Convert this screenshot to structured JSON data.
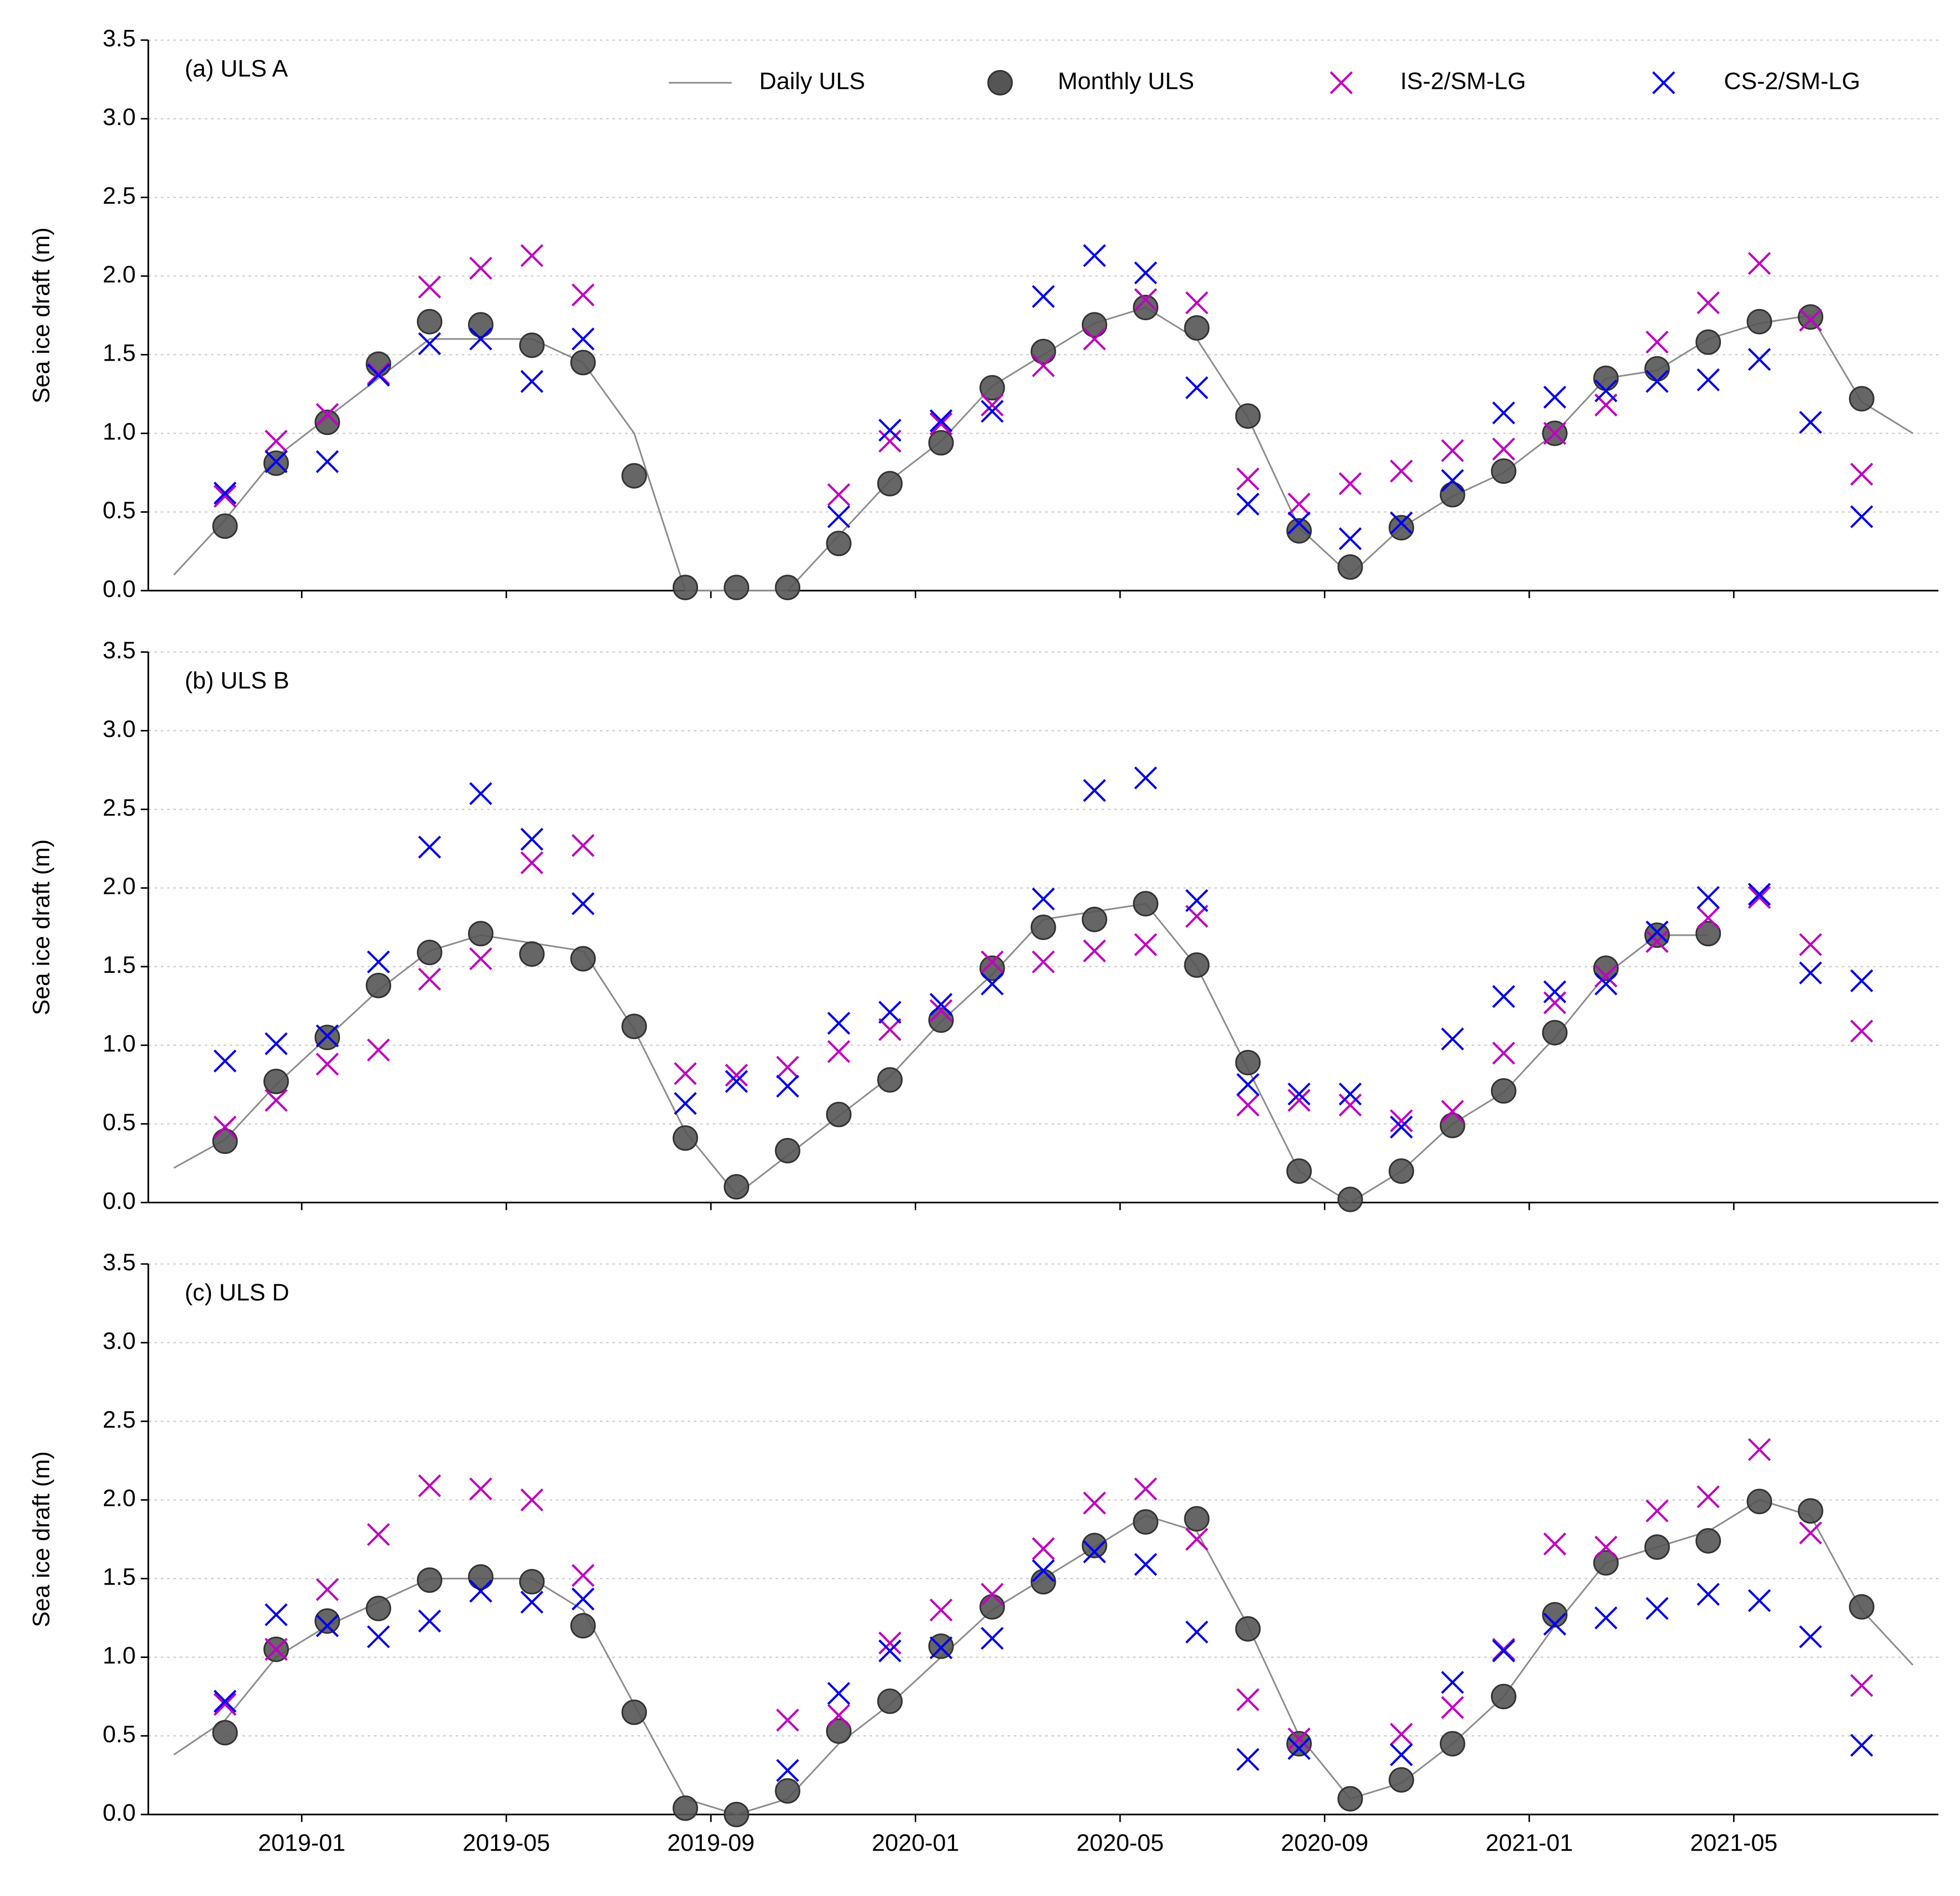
{
  "chart_data": [
    {
      "type": "line",
      "title": "(a) ULS A",
      "ylabel": "Sea ice draft (m)",
      "x": [
        "2018-10",
        "2018-11",
        "2018-12",
        "2019-01",
        "2019-02",
        "2019-03",
        "2019-04",
        "2019-05",
        "2019-06",
        "2019-07",
        "2019-08",
        "2019-09",
        "2019-10",
        "2019-11",
        "2019-12",
        "2020-01",
        "2020-02",
        "2020-03",
        "2020-04",
        "2020-05",
        "2020-06",
        "2020-07",
        "2020-08",
        "2020-09",
        "2020-10",
        "2020-11",
        "2020-12",
        "2021-01",
        "2021-02",
        "2021-03",
        "2021-04",
        "2021-05",
        "2021-06",
        "2021-07",
        "2021-08"
      ],
      "xlim": [
        "2018-10",
        "2021-08"
      ],
      "xticks": [
        "2019-01",
        "2019-05",
        "2019-09",
        "2020-01",
        "2020-05",
        "2020-09",
        "2021-01",
        "2021-05"
      ],
      "ylim": [
        0,
        3.5
      ],
      "yticks": [
        {
          "value": 0,
          "label": "0.0"
        },
        {
          "value": 0.5,
          "label": "0.5"
        },
        {
          "value": 1,
          "label": "1.0"
        },
        {
          "value": 1.5,
          "label": "1.5"
        },
        {
          "value": 2,
          "label": "2.0"
        },
        {
          "value": 2.5,
          "label": "2.5"
        },
        {
          "value": 3,
          "label": "3.0"
        },
        {
          "value": 3.5,
          "label": "3.5"
        }
      ],
      "grid": true,
      "legend": "upper right",
      "series": [
        {
          "name": "Daily ULS",
          "marker": "line",
          "color": "#8c8c8c",
          "values": [
            0.1,
            0.45,
            0.85,
            1.1,
            1.35,
            1.6,
            1.6,
            1.6,
            1.45,
            1.0,
            0.0,
            0.0,
            0.0,
            0.35,
            0.7,
            0.95,
            1.3,
            1.5,
            1.7,
            1.8,
            1.6,
            1.1,
            0.4,
            0.1,
            0.4,
            0.6,
            0.75,
            1.0,
            1.35,
            1.4,
            1.6,
            1.7,
            1.75,
            1.2,
            1.0
          ]
        },
        {
          "name": "Monthly ULS",
          "marker": "circle",
          "color": "#555555",
          "values": [
            null,
            0.41,
            0.81,
            1.07,
            1.44,
            1.71,
            1.69,
            1.56,
            1.45,
            0.73,
            0.02,
            0.02,
            0.02,
            0.3,
            0.68,
            0.94,
            1.29,
            1.52,
            1.69,
            1.8,
            1.67,
            1.11,
            0.38,
            0.15,
            0.4,
            0.61,
            0.76,
            1.0,
            1.35,
            1.41,
            1.58,
            1.71,
            1.74,
            1.22,
            null
          ]
        },
        {
          "name": "IS-2/SM-LG",
          "marker": "x",
          "color": "#c000c0",
          "values": [
            null,
            0.6,
            0.95,
            1.12,
            1.38,
            1.93,
            2.05,
            2.13,
            1.88,
            null,
            null,
            null,
            null,
            0.61,
            0.95,
            1.06,
            1.18,
            1.43,
            1.6,
            1.85,
            1.83,
            0.71,
            0.55,
            0.68,
            0.76,
            0.89,
            0.9,
            1.0,
            1.18,
            1.58,
            1.83,
            2.08,
            1.72,
            0.74,
            null
          ]
        },
        {
          "name": "CS-2/SM-LG",
          "marker": "x",
          "color": "#0000ee",
          "values": [
            null,
            0.62,
            0.82,
            0.82,
            1.37,
            1.57,
            1.6,
            1.33,
            1.6,
            null,
            null,
            null,
            null,
            0.47,
            1.02,
            1.08,
            1.14,
            1.87,
            2.13,
            2.02,
            1.29,
            0.55,
            0.43,
            0.33,
            0.43,
            0.7,
            1.13,
            1.23,
            1.27,
            1.33,
            1.34,
            1.47,
            1.07,
            0.47,
            null
          ]
        }
      ]
    },
    {
      "type": "line",
      "title": "(b) ULS B",
      "ylabel": "Sea ice draft (m)",
      "x": [
        "2018-10",
        "2018-11",
        "2018-12",
        "2019-01",
        "2019-02",
        "2019-03",
        "2019-04",
        "2019-05",
        "2019-06",
        "2019-07",
        "2019-08",
        "2019-09",
        "2019-10",
        "2019-11",
        "2019-12",
        "2020-01",
        "2020-02",
        "2020-03",
        "2020-04",
        "2020-05",
        "2020-06",
        "2020-07",
        "2020-08",
        "2020-09",
        "2020-10",
        "2020-11",
        "2020-12",
        "2021-01",
        "2021-02",
        "2021-03",
        "2021-04",
        "2021-05",
        "2021-06",
        "2021-07",
        "2021-08"
      ],
      "xlim": [
        "2018-10",
        "2021-08"
      ],
      "xticks": [
        "2019-01",
        "2019-05",
        "2019-09",
        "2020-01",
        "2020-05",
        "2020-09",
        "2021-01",
        "2021-05"
      ],
      "ylim": [
        0,
        3.5
      ],
      "yticks": [
        {
          "value": 0,
          "label": "0.0"
        },
        {
          "value": 0.5,
          "label": "0.5"
        },
        {
          "value": 1,
          "label": "1.0"
        },
        {
          "value": 1.5,
          "label": "1.5"
        },
        {
          "value": 2,
          "label": "2.0"
        },
        {
          "value": 2.5,
          "label": "2.5"
        },
        {
          "value": 3,
          "label": "3.0"
        },
        {
          "value": 3.5,
          "label": "3.5"
        }
      ],
      "grid": true,
      "series": [
        {
          "marker": "line",
          "color": "#8c8c8c",
          "values": [
            0.22,
            0.4,
            0.75,
            1.05,
            1.35,
            1.6,
            1.7,
            1.65,
            1.6,
            1.1,
            0.45,
            0.05,
            0.3,
            0.55,
            0.8,
            1.15,
            1.45,
            1.8,
            1.85,
            1.9,
            1.5,
            0.85,
            0.2,
            0.0,
            0.2,
            0.5,
            0.7,
            1.05,
            1.45,
            1.7,
            1.7,
            null,
            null,
            null,
            null
          ]
        },
        {
          "marker": "circle",
          "color": "#555555",
          "values": [
            null,
            0.39,
            0.77,
            1.05,
            1.38,
            1.59,
            1.71,
            1.58,
            1.55,
            1.12,
            0.41,
            0.1,
            0.33,
            0.56,
            0.78,
            1.16,
            1.49,
            1.75,
            1.8,
            1.9,
            1.51,
            0.89,
            0.2,
            0.02,
            0.2,
            0.49,
            0.71,
            1.08,
            1.49,
            1.7,
            1.71,
            null,
            null,
            null,
            null
          ]
        },
        {
          "marker": "x",
          "color": "#c000c0",
          "values": [
            null,
            0.48,
            0.65,
            0.88,
            0.97,
            1.42,
            1.55,
            2.16,
            2.27,
            null,
            0.82,
            0.81,
            0.86,
            0.96,
            1.1,
            1.22,
            1.53,
            1.53,
            1.6,
            1.64,
            1.82,
            0.62,
            0.65,
            0.62,
            0.52,
            0.58,
            0.95,
            1.27,
            1.44,
            1.66,
            1.81,
            1.94,
            1.64,
            1.09,
            null
          ]
        },
        {
          "marker": "x",
          "color": "#0000ee",
          "values": [
            null,
            0.9,
            1.01,
            1.06,
            1.53,
            2.26,
            2.6,
            2.31,
            1.9,
            null,
            0.63,
            0.77,
            0.74,
            1.14,
            1.21,
            1.26,
            1.39,
            1.93,
            2.62,
            2.7,
            1.92,
            0.75,
            0.69,
            0.69,
            0.48,
            1.04,
            1.31,
            1.34,
            1.39,
            1.72,
            1.94,
            1.96,
            1.46,
            1.41,
            null
          ]
        }
      ]
    },
    {
      "type": "line",
      "title": "(c) ULS D",
      "ylabel": "Sea ice draft (m)",
      "x": [
        "2018-10",
        "2018-11",
        "2018-12",
        "2019-01",
        "2019-02",
        "2019-03",
        "2019-04",
        "2019-05",
        "2019-06",
        "2019-07",
        "2019-08",
        "2019-09",
        "2019-10",
        "2019-11",
        "2019-12",
        "2020-01",
        "2020-02",
        "2020-03",
        "2020-04",
        "2020-05",
        "2020-06",
        "2020-07",
        "2020-08",
        "2020-09",
        "2020-10",
        "2020-11",
        "2020-12",
        "2021-01",
        "2021-02",
        "2021-03",
        "2021-04",
        "2021-05",
        "2021-06",
        "2021-07",
        "2021-08"
      ],
      "xlim": [
        "2018-10",
        "2021-08"
      ],
      "xticks": [
        "2019-01",
        "2019-05",
        "2019-09",
        "2020-01",
        "2020-05",
        "2020-09",
        "2021-01",
        "2021-05"
      ],
      "ylim": [
        0,
        3.5
      ],
      "yticks": [
        {
          "value": 0,
          "label": "0.0"
        },
        {
          "value": 0.5,
          "label": "0.5"
        },
        {
          "value": 1,
          "label": "1.0"
        },
        {
          "value": 1.5,
          "label": "1.5"
        },
        {
          "value": 2,
          "label": "2.0"
        },
        {
          "value": 2.5,
          "label": "2.5"
        },
        {
          "value": 3,
          "label": "3.0"
        },
        {
          "value": 3.5,
          "label": "3.5"
        }
      ],
      "grid": true,
      "series": [
        {
          "marker": "line",
          "color": "#8c8c8c",
          "values": [
            0.38,
            0.6,
            1.0,
            1.2,
            1.35,
            1.5,
            1.5,
            1.5,
            1.3,
            0.7,
            0.1,
            0.0,
            0.1,
            0.45,
            0.7,
            1.0,
            1.3,
            1.5,
            1.7,
            1.9,
            1.8,
            1.2,
            0.5,
            0.1,
            0.2,
            0.45,
            0.75,
            1.2,
            1.6,
            1.7,
            1.8,
            2.0,
            1.9,
            1.3,
            0.95
          ]
        },
        {
          "marker": "circle",
          "color": "#555555",
          "values": [
            null,
            0.52,
            1.05,
            1.23,
            1.31,
            1.49,
            1.51,
            1.48,
            1.2,
            0.65,
            0.04,
            0.0,
            0.15,
            0.53,
            0.72,
            1.07,
            1.32,
            1.48,
            1.71,
            1.86,
            1.88,
            1.18,
            0.45,
            0.1,
            0.22,
            0.45,
            0.75,
            1.27,
            1.6,
            1.7,
            1.74,
            1.99,
            1.93,
            1.32,
            null
          ]
        },
        {
          "marker": "x",
          "color": "#c000c0",
          "values": [
            null,
            0.7,
            1.05,
            1.43,
            1.78,
            2.09,
            2.07,
            2.0,
            1.52,
            null,
            null,
            null,
            0.6,
            0.63,
            1.09,
            1.3,
            1.4,
            1.69,
            1.98,
            2.07,
            1.75,
            0.73,
            0.48,
            null,
            0.51,
            0.68,
            1.05,
            1.72,
            1.7,
            1.93,
            2.02,
            2.32,
            1.79,
            0.82,
            null
          ]
        },
        {
          "marker": "x",
          "color": "#0000ee",
          "values": [
            null,
            0.72,
            1.27,
            1.2,
            1.13,
            1.23,
            1.42,
            1.35,
            1.37,
            null,
            null,
            null,
            0.28,
            0.77,
            1.04,
            1.06,
            1.12,
            1.55,
            1.67,
            1.59,
            1.16,
            0.35,
            0.42,
            null,
            0.38,
            0.84,
            1.04,
            1.21,
            1.25,
            1.31,
            1.4,
            1.36,
            1.13,
            0.44,
            null
          ]
        }
      ]
    }
  ]
}
